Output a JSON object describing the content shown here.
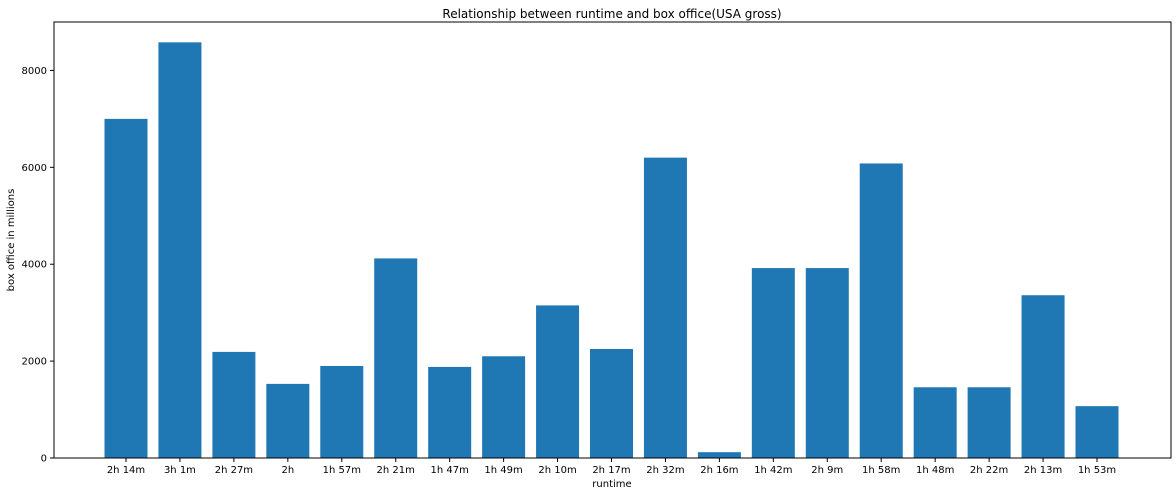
{
  "chart_data": {
    "type": "bar",
    "title": "Relationship between runtime and box office(USA gross)",
    "xlabel": "runtime",
    "ylabel": "box office in millions",
    "categories": [
      "2h 14m",
      "3h 1m",
      "2h 27m",
      "2h",
      "1h 57m",
      "2h 21m",
      "1h 47m",
      "1h 49m",
      "2h 10m",
      "2h 17m",
      "2h 32m",
      "2h 16m",
      "1h 42m",
      "2h 9m",
      "1h 58m",
      "1h 48m",
      "2h 22m",
      "2h 13m",
      "1h 53m"
    ],
    "values": [
      7000,
      8580,
      2190,
      1530,
      1900,
      4120,
      1880,
      2100,
      3150,
      2250,
      6200,
      120,
      3920,
      3920,
      6080,
      1460,
      1460,
      3360,
      1070
    ],
    "yticks": [
      0,
      2000,
      4000,
      6000,
      8000
    ],
    "ylim": [
      0,
      9000
    ],
    "grid": false,
    "legend": "none",
    "colors": {
      "bar": "#1f77b4",
      "axis": "#000000",
      "background": "#ffffff"
    }
  }
}
